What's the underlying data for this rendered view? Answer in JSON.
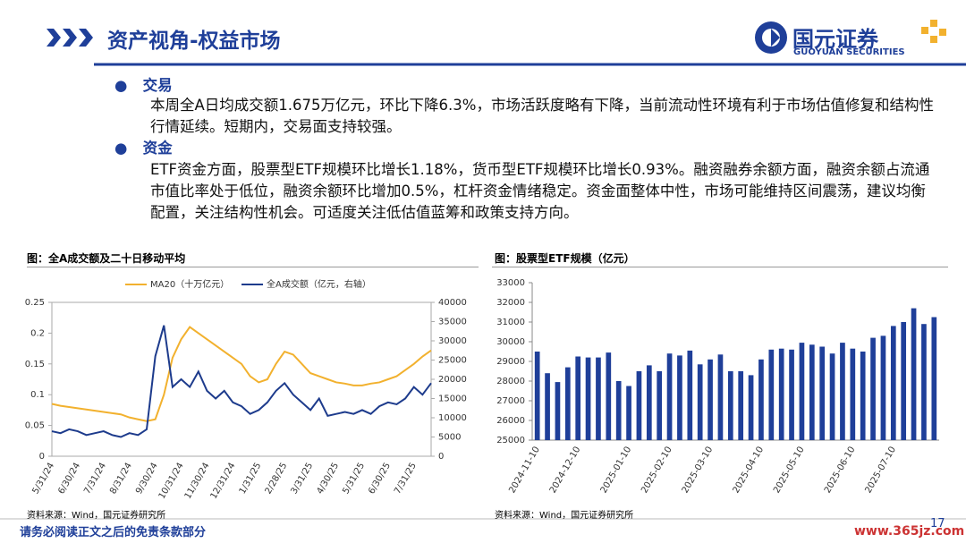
{
  "header": {
    "title": "资产视角-权益市场",
    "logo_name": "国元证券",
    "logo_subtitle": "GUOYUAN SECURITIES"
  },
  "sections": [
    {
      "heading": "交易",
      "text": "本周全A日均成交额1.675万亿元，环比下降6.3%，市场活跃度略有下降，当前流动性环境有利于市场估值修复和结构性行情延续。短期内，交易面支持较强。"
    },
    {
      "heading": "资金",
      "text": "ETF资金方面，股票型ETF规模环比增长1.18%，货币型ETF规模环比增长0.93%。融资融券余额方面，融资余额占流通市值比率处于低位，融资余额环比增加0.5%，杠杆资金情绪稳定。资金面整体中性，市场可能维持区间震荡，建议均衡配置，关注结构性机会。可适度关注低估值蓝筹和政策支持方向。"
    }
  ],
  "chart_data": [
    {
      "type": "line",
      "title": "图：全A成交额及二十日移动平均",
      "source": "资料来源：Wind，国元证券研究所",
      "categories": [
        "5/31/24",
        null,
        null,
        "6/30/24",
        null,
        null,
        "7/31/24",
        null,
        null,
        "8/31/24",
        null,
        null,
        "9/30/24",
        null,
        null,
        "10/31/24",
        null,
        null,
        "11/30/24",
        null,
        null,
        "12/31/24",
        null,
        null,
        "1/31/25",
        null,
        null,
        "2/28/25",
        null,
        null,
        "3/31/25",
        null,
        null,
        "4/30/25",
        null,
        null,
        "5/31/25",
        null,
        null,
        "6/30/25",
        null,
        null,
        "7/31/25",
        null,
        null
      ],
      "series": [
        {
          "name": "MA20（十万亿元）",
          "color": "#f2b12e",
          "values": [
            0.085,
            0.082,
            0.08,
            0.078,
            0.076,
            0.074,
            0.072,
            0.07,
            0.068,
            0.063,
            0.06,
            0.057,
            0.06,
            0.1,
            0.16,
            0.19,
            0.21,
            0.2,
            0.19,
            0.18,
            0.17,
            0.16,
            0.15,
            0.13,
            0.12,
            0.125,
            0.15,
            0.17,
            0.165,
            0.15,
            0.135,
            0.13,
            0.125,
            0.12,
            0.118,
            0.115,
            0.115,
            0.118,
            0.12,
            0.125,
            0.13,
            0.14,
            0.15,
            0.162,
            0.172
          ]
        },
        {
          "name": "全A成交额（亿元，右轴）",
          "color": "#1d3b8c",
          "axis": "y2",
          "values": [
            6500,
            6000,
            7000,
            6500,
            5500,
            6000,
            6500,
            5500,
            5000,
            6000,
            5500,
            7000,
            26000,
            34000,
            18000,
            20000,
            18000,
            22000,
            17000,
            15000,
            17000,
            14000,
            13000,
            11000,
            12000,
            14000,
            17000,
            19000,
            16000,
            14000,
            12000,
            15000,
            10500,
            11000,
            11500,
            11000,
            12000,
            11000,
            13000,
            14000,
            13500,
            15000,
            18000,
            16000,
            19000
          ]
        }
      ],
      "ylim": [
        0,
        0.25
      ],
      "yticks": [
        0,
        0.05,
        0.1,
        0.15,
        0.2,
        0.25
      ],
      "y2lim": [
        0,
        40000
      ],
      "y2ticks": [
        0,
        5000,
        10000,
        15000,
        20000,
        25000,
        30000,
        35000,
        40000
      ]
    },
    {
      "type": "bar",
      "title": "图：股票型ETF规模（亿元）",
      "source": "资料来源：Wind，国元证券研究所",
      "color": "#1f3f99",
      "categories": [
        "2024-11-10",
        null,
        null,
        null,
        "2024-12-10",
        null,
        null,
        null,
        null,
        "2025-01-10",
        null,
        null,
        null,
        "2025-02-10",
        null,
        null,
        null,
        "2025-03-10",
        null,
        null,
        null,
        null,
        "2025-04-10",
        null,
        null,
        null,
        "2025-05-10",
        null,
        null,
        null,
        null,
        "2025-06-10",
        null,
        null,
        null,
        "2025-07-10",
        null,
        null,
        null,
        null
      ],
      "values": [
        29500,
        28400,
        27950,
        28700,
        29250,
        29200,
        29200,
        29450,
        28000,
        27750,
        28500,
        28800,
        28500,
        29400,
        29300,
        29550,
        28850,
        29100,
        29350,
        28500,
        28500,
        28300,
        29100,
        29600,
        29650,
        29600,
        29950,
        29850,
        29750,
        29400,
        29950,
        29650,
        29500,
        30200,
        30300,
        30800,
        31000,
        31700,
        30900,
        31250
      ],
      "ylim": [
        25000,
        33000
      ],
      "yticks": [
        25000,
        26000,
        27000,
        28000,
        29000,
        30000,
        31000,
        32000,
        33000
      ]
    }
  ],
  "footer": {
    "disclaimer": "请务必阅读正文之后的免责条款部分",
    "page": "17",
    "watermark": "www.365jz.com"
  }
}
